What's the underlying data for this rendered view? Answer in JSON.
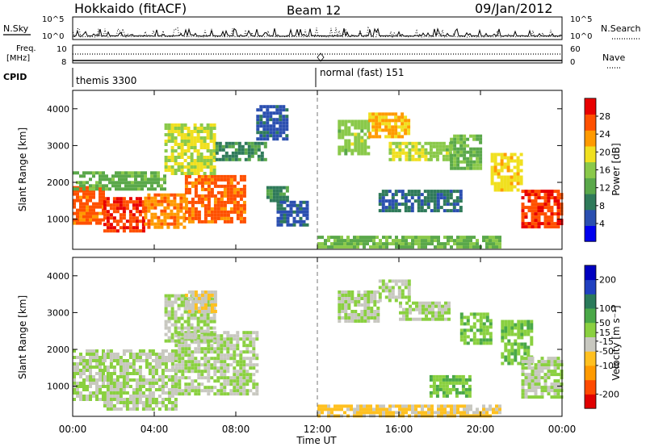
{
  "header": {
    "station": "Hokkaido (fitACF)",
    "beam": "Beam 12",
    "date": "09/Jan/2012"
  },
  "top_panels": {
    "nsky_label": "N.Sky",
    "nsky_ticks": [
      "10^5",
      "10^0"
    ],
    "nsearch_label": "N.Search",
    "nsearch_ticks": [
      "10^5",
      "10^0"
    ],
    "freq_label": "Freq.",
    "freq_unit": "[MHz]",
    "freq_ticks": [
      "8",
      "10"
    ],
    "nave_label": "Nave",
    "nave_ticks": [
      "60",
      "0"
    ],
    "cpid_label": "CPID",
    "cpid_segments": [
      {
        "start_hour": 0,
        "text": "themis 3300"
      },
      {
        "start_hour": 12,
        "text": "normal (fast) 151"
      }
    ]
  },
  "chart_data": [
    {
      "type": "heatmap",
      "title": "",
      "xlabel": "Time UT",
      "ylabel": "Slant Range [km]",
      "xlim": [
        0,
        24
      ],
      "ylim": [
        180,
        4500
      ],
      "x_tick_hours": [
        0,
        4,
        8,
        12,
        16,
        20,
        24
      ],
      "x_tick_labels": [
        "00:00",
        "04:00",
        "08:00",
        "12:00",
        "16:00",
        "20:00",
        "00:00"
      ],
      "y_ticks": [
        1000,
        2000,
        3000,
        4000
      ],
      "colorbar": {
        "label": "Power [dB]",
        "range": [
          0,
          32
        ],
        "tick_values": [
          4,
          8,
          12,
          16,
          20,
          24,
          28
        ],
        "tick_labels": [
          "4",
          "8",
          "12",
          "16",
          "20",
          "24",
          "28"
        ],
        "colors": [
          "#0000ee",
          "#2b4fb0",
          "#2f7a5a",
          "#5aa84a",
          "#8ac94a",
          "#f0e020",
          "#ff9a00",
          "#ff5000",
          "#e80000"
        ]
      },
      "regions": [
        {
          "hours": [
            0.0,
            1.5
          ],
          "range_km": [
            900,
            1900
          ],
          "value": 26
        },
        {
          "hours": [
            1.5,
            3.5
          ],
          "range_km": [
            700,
            1600
          ],
          "value": 28
        },
        {
          "hours": [
            3.5,
            5.5
          ],
          "range_km": [
            750,
            1700
          ],
          "value": 24
        },
        {
          "hours": [
            5.5,
            8.5
          ],
          "range_km": [
            900,
            2200
          ],
          "value": 26
        },
        {
          "hours": [
            0.0,
            4.5
          ],
          "range_km": [
            1800,
            2300
          ],
          "value": 13
        },
        {
          "hours": [
            4.5,
            7.0
          ],
          "range_km": [
            2200,
            3600
          ],
          "value": 18
        },
        {
          "hours": [
            7.0,
            9.5
          ],
          "range_km": [
            2600,
            3100
          ],
          "value": 10
        },
        {
          "hours": [
            9.0,
            10.5
          ],
          "range_km": [
            3200,
            4100
          ],
          "value": 6
        },
        {
          "hours": [
            9.5,
            10.5
          ],
          "range_km": [
            1500,
            1900
          ],
          "value": 10
        },
        {
          "hours": [
            10.0,
            11.5
          ],
          "range_km": [
            800,
            1500
          ],
          "value": 6
        },
        {
          "hours": [
            12.0,
            21.0
          ],
          "range_km": [
            250,
            550
          ],
          "value": 14
        },
        {
          "hours": [
            13.0,
            14.5
          ],
          "range_km": [
            2800,
            3700
          ],
          "value": 16
        },
        {
          "hours": [
            14.5,
            16.5
          ],
          "range_km": [
            3200,
            3900
          ],
          "value": 22
        },
        {
          "hours": [
            15.5,
            17.5
          ],
          "range_km": [
            2600,
            3100
          ],
          "value": 18
        },
        {
          "hours": [
            17.5,
            18.5
          ],
          "range_km": [
            2600,
            3100
          ],
          "value": 16
        },
        {
          "hours": [
            18.5,
            20.0
          ],
          "range_km": [
            2400,
            3300
          ],
          "value": 14
        },
        {
          "hours": [
            15.0,
            19.0
          ],
          "range_km": [
            1200,
            1800
          ],
          "value": 8
        },
        {
          "hours": [
            20.5,
            22.0
          ],
          "range_km": [
            1800,
            2800
          ],
          "value": 20
        },
        {
          "hours": [
            22.0,
            24.0
          ],
          "range_km": [
            800,
            1800
          ],
          "value": 28
        }
      ]
    },
    {
      "type": "heatmap",
      "title": "",
      "xlabel": "Time UT",
      "ylabel": "Slant Range [km]",
      "xlim": [
        0,
        24
      ],
      "ylim": [
        180,
        4500
      ],
      "x_tick_hours": [
        0,
        4,
        8,
        12,
        16,
        20,
        24
      ],
      "x_tick_labels": [
        "00:00",
        "04:00",
        "08:00",
        "12:00",
        "16:00",
        "20:00",
        "00:00"
      ],
      "y_ticks": [
        1000,
        2000,
        3000,
        4000
      ],
      "colorbar": {
        "label": "Velocity [m s⁻¹]",
        "range": [
          -250,
          250
        ],
        "tick_values": [
          200,
          100,
          50,
          15,
          -15,
          -50,
          -100,
          -200
        ],
        "tick_labels": [
          "200",
          "100",
          "50",
          "15",
          "-15",
          "-50",
          "-100",
          "-200"
        ],
        "colors": [
          "#e00000",
          "#ff4a00",
          "#ff9a00",
          "#ffc020",
          "#c8c8c0",
          "#8ad040",
          "#4aa848",
          "#2a7a5a",
          "#2040c0",
          "#0000c0"
        ]
      },
      "regions": [
        {
          "hours": [
            0.0,
            1.5
          ],
          "range_km": [
            600,
            2000
          ],
          "value": 0
        },
        {
          "hours": [
            1.5,
            5.0
          ],
          "range_km": [
            400,
            2000
          ],
          "value": 0
        },
        {
          "hours": [
            5.0,
            9.0
          ],
          "range_km": [
            800,
            2500
          ],
          "value": 0
        },
        {
          "hours": [
            4.5,
            7.0
          ],
          "range_km": [
            2200,
            3500
          ],
          "value": 0
        },
        {
          "hours": [
            5.5,
            7.0
          ],
          "range_km": [
            3000,
            3600
          ],
          "value": -40
        },
        {
          "hours": [
            12.0,
            21.0
          ],
          "range_km": [
            200,
            500
          ],
          "value": -60
        },
        {
          "hours": [
            13.0,
            15.0
          ],
          "range_km": [
            2800,
            3600
          ],
          "value": 0
        },
        {
          "hours": [
            15.0,
            16.5
          ],
          "range_km": [
            3300,
            3900
          ],
          "value": 0
        },
        {
          "hours": [
            16.0,
            18.5
          ],
          "range_km": [
            2800,
            3300
          ],
          "value": 0
        },
        {
          "hours": [
            17.5,
            19.5
          ],
          "range_km": [
            700,
            1300
          ],
          "value": 40
        },
        {
          "hours": [
            19.0,
            20.5
          ],
          "range_km": [
            2200,
            3000
          ],
          "value": 35
        },
        {
          "hours": [
            21.0,
            22.5
          ],
          "range_km": [
            1600,
            2800
          ],
          "value": 40
        },
        {
          "hours": [
            22.0,
            24.0
          ],
          "range_km": [
            700,
            1800
          ],
          "value": 0
        }
      ]
    }
  ]
}
